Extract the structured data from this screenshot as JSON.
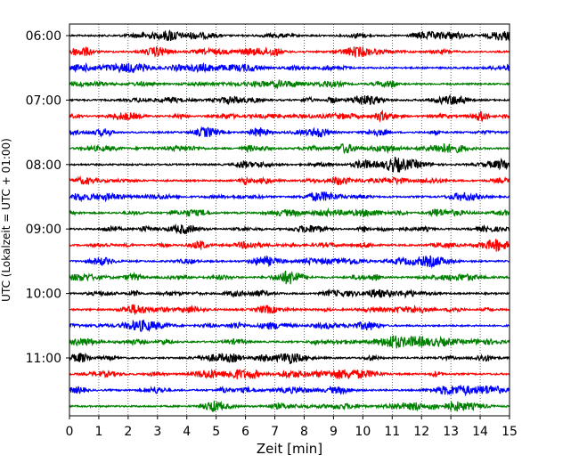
{
  "chart_data": {
    "type": "line",
    "title": "",
    "xlabel": "Zeit  [min]",
    "ylabel": "UTC (Lokalzeit = UTC + 01:00)",
    "xlim": [
      0,
      15
    ],
    "x_ticks": [
      "0",
      "1",
      "2",
      "3",
      "4",
      "5",
      "6",
      "7",
      "8",
      "9",
      "10",
      "11",
      "12",
      "13",
      "14",
      "15"
    ],
    "y_ticks": [
      "06:00",
      "07:00",
      "08:00",
      "09:00",
      "10:00",
      "11:00"
    ],
    "grid": "vertical dotted",
    "trace_interval_min": 15,
    "trace_colors": [
      "#000000",
      "#ff0000",
      "#0000ff",
      "#008000"
    ],
    "traces": [
      {
        "start": "06:00",
        "color": "#000000"
      },
      {
        "start": "06:15",
        "color": "#ff0000"
      },
      {
        "start": "06:30",
        "color": "#0000ff"
      },
      {
        "start": "06:45",
        "color": "#008000"
      },
      {
        "start": "07:00",
        "color": "#000000"
      },
      {
        "start": "07:15",
        "color": "#ff0000"
      },
      {
        "start": "07:30",
        "color": "#0000ff"
      },
      {
        "start": "07:45",
        "color": "#008000"
      },
      {
        "start": "08:00",
        "color": "#000000"
      },
      {
        "start": "08:15",
        "color": "#ff0000"
      },
      {
        "start": "08:30",
        "color": "#0000ff"
      },
      {
        "start": "08:45",
        "color": "#008000"
      },
      {
        "start": "09:00",
        "color": "#000000"
      },
      {
        "start": "09:15",
        "color": "#ff0000"
      },
      {
        "start": "09:30",
        "color": "#0000ff"
      },
      {
        "start": "09:45",
        "color": "#008000"
      },
      {
        "start": "10:00",
        "color": "#000000"
      },
      {
        "start": "10:15",
        "color": "#ff0000"
      },
      {
        "start": "10:30",
        "color": "#0000ff"
      },
      {
        "start": "10:45",
        "color": "#008000"
      },
      {
        "start": "11:00",
        "color": "#000000"
      },
      {
        "start": "11:15",
        "color": "#ff0000"
      },
      {
        "start": "11:30",
        "color": "#0000ff"
      },
      {
        "start": "11:45",
        "color": "#008000"
      }
    ]
  }
}
